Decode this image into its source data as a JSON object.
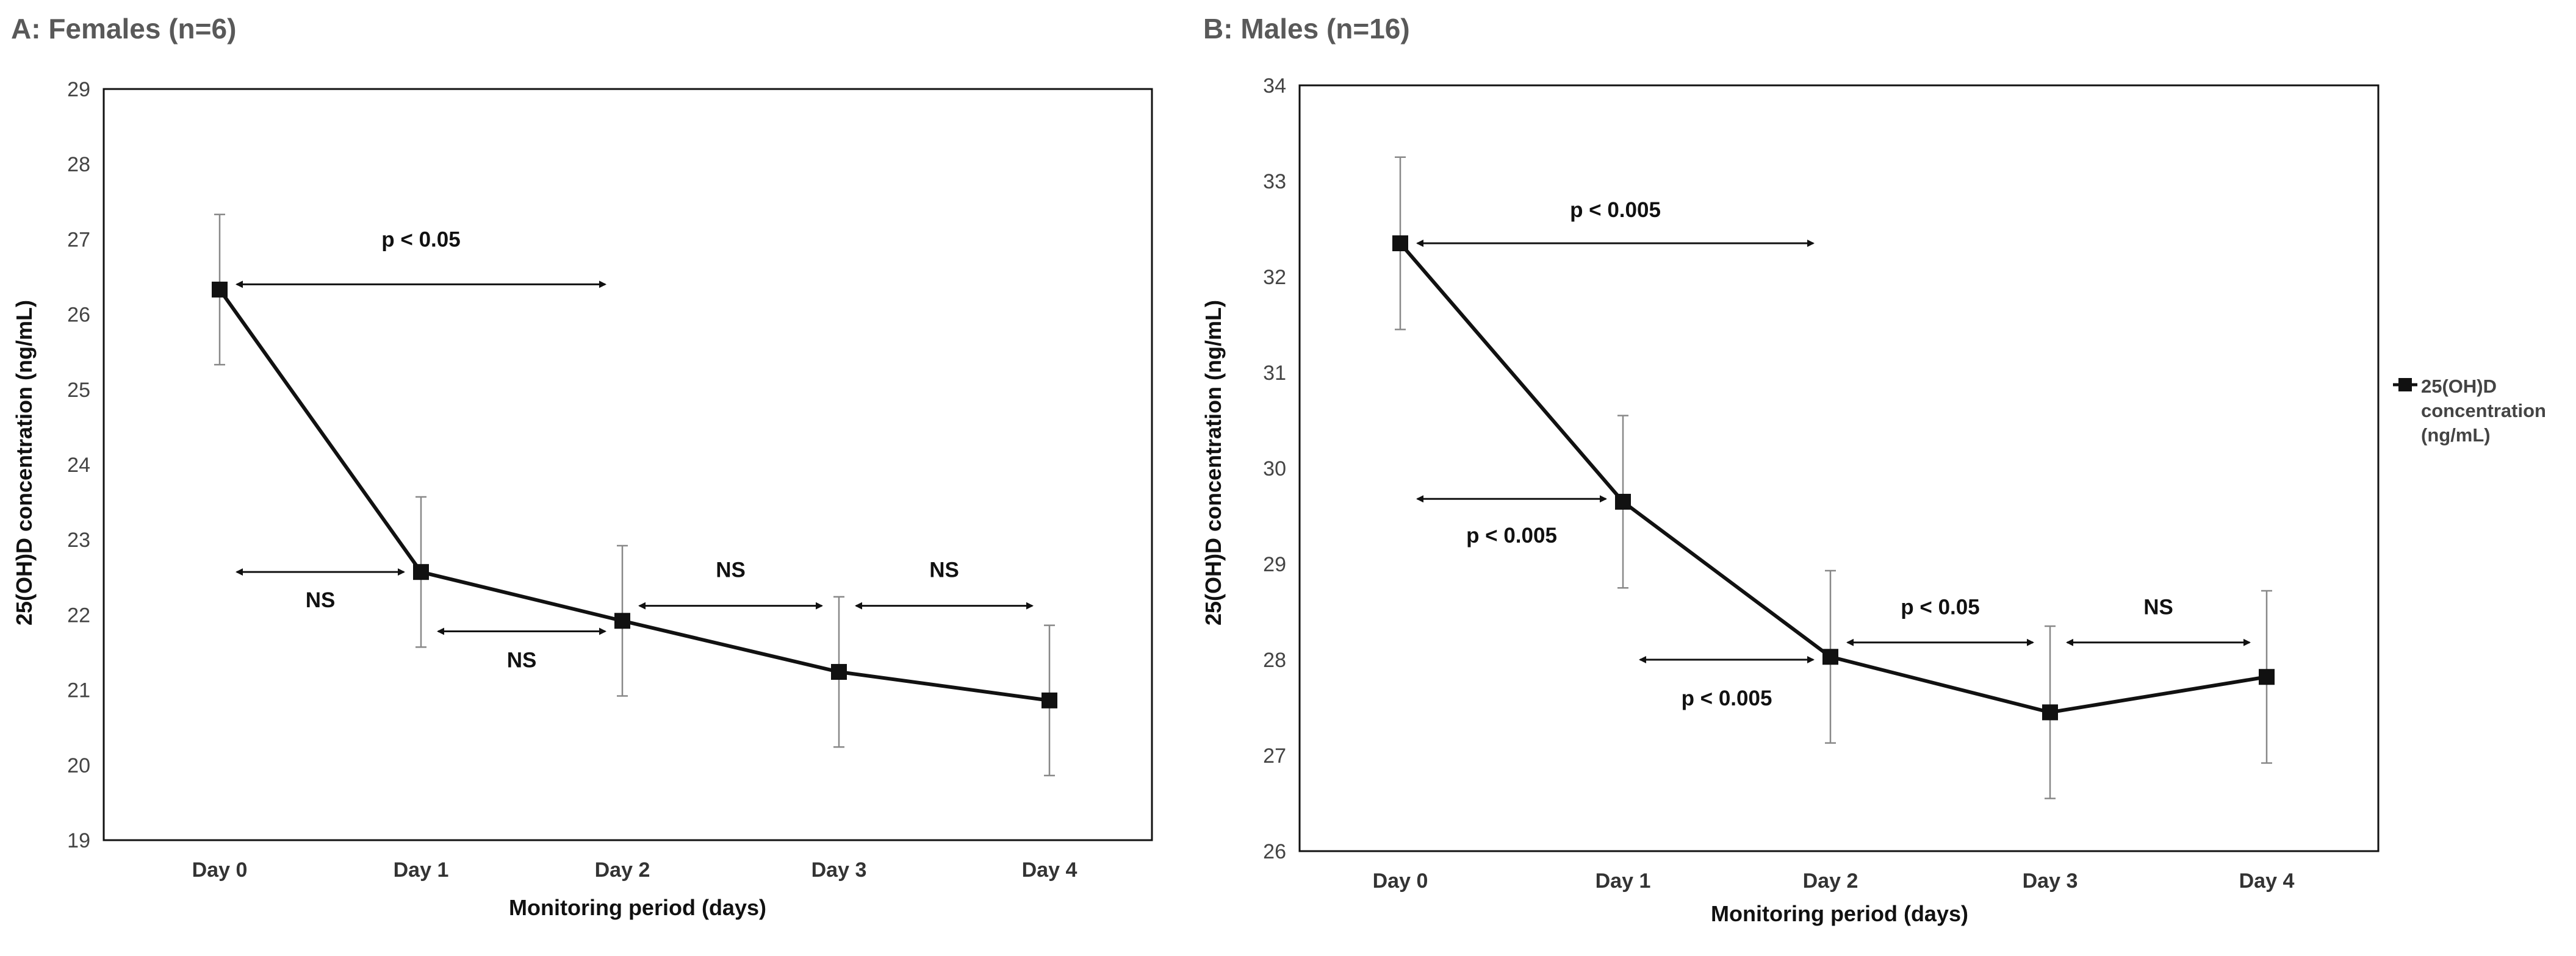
{
  "chart_data": [
    {
      "type": "line",
      "title": "A: Females (n=6)",
      "xlabel": "Monitoring period (days)",
      "ylabel": "25(OH)D concentration (ng/mL)",
      "categories": [
        "Day 0",
        "Day 1",
        "Day 2",
        "Day 3",
        "Day 4"
      ],
      "ylim": [
        19,
        29
      ],
      "yticks": [
        19,
        20,
        21,
        22,
        23,
        24,
        25,
        26,
        27,
        28,
        29
      ],
      "series": [
        {
          "name": "25(OH)D concentration (ng/mL)",
          "values": [
            26.33,
            22.57,
            21.92,
            21.24,
            20.86
          ],
          "error": [
            1.0,
            1.0,
            1.0,
            1.0,
            1.0
          ]
        }
      ],
      "annotations": [
        {
          "text": "p < 0.05",
          "from": 0,
          "to": 2,
          "y": 26.4,
          "label_y": 27.0
        },
        {
          "text": "NS",
          "from": 0,
          "to": 1,
          "y": 22.57,
          "label_y": 22.2
        },
        {
          "text": "NS",
          "from": 1,
          "to": 2,
          "y": 21.78,
          "label_y": 21.4
        },
        {
          "text": "NS",
          "from": 2,
          "to": 3,
          "y": 22.12,
          "label_y": 22.6
        },
        {
          "text": "NS",
          "from": 3,
          "to": 4,
          "y": 22.12,
          "label_y": 22.6
        }
      ]
    },
    {
      "type": "line",
      "title": "B: Males (n=16)",
      "xlabel": "Monitoring period (days)",
      "ylabel": "25(OH)D concentration (ng/mL)",
      "categories": [
        "Day 0",
        "Day 1",
        "Day 2",
        "Day 3",
        "Day 4"
      ],
      "ylim": [
        26,
        34
      ],
      "yticks": [
        26,
        27,
        28,
        29,
        30,
        31,
        32,
        33,
        34
      ],
      "series": [
        {
          "name": "25(OH)D concentration (ng/mL)",
          "values": [
            32.35,
            29.65,
            28.03,
            27.45,
            27.82
          ],
          "error": [
            0.9,
            0.9,
            0.9,
            0.9,
            0.9
          ]
        }
      ],
      "annotations": [
        {
          "text": "p < 0.005",
          "from": 0,
          "to": 2,
          "y": 32.35,
          "label_y": 32.7
        },
        {
          "text": "p < 0.005",
          "from": 0,
          "to": 1,
          "y": 29.68,
          "label_y": 29.3
        },
        {
          "text": "p < 0.005",
          "from": 1,
          "to": 2,
          "y": 28.0,
          "label_y": 27.6
        },
        {
          "text": "p < 0.05",
          "from": 2,
          "to": 3,
          "y": 28.18,
          "label_y": 28.55
        },
        {
          "text": "NS",
          "from": 3,
          "to": 4,
          "y": 28.18,
          "label_y": 28.55
        }
      ],
      "legend": {
        "position": "right",
        "label": [
          "25(OH)D",
          "concentration",
          "(ng/mL)"
        ]
      }
    }
  ]
}
